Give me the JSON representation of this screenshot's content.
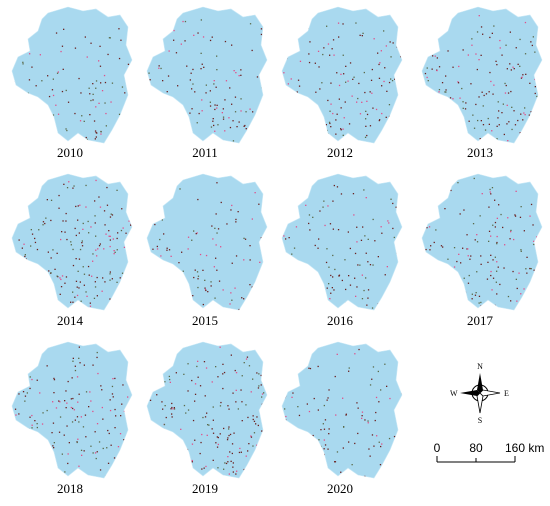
{
  "panels": [
    {
      "year": "2010"
    },
    {
      "year": "2011"
    },
    {
      "year": "2012"
    },
    {
      "year": "2013"
    },
    {
      "year": "2014"
    },
    {
      "year": "2015"
    },
    {
      "year": "2016"
    },
    {
      "year": "2017"
    },
    {
      "year": "2018"
    },
    {
      "year": "2019"
    },
    {
      "year": "2020"
    }
  ],
  "compass": {
    "north": "N",
    "south": "S",
    "east": "E",
    "west": "W"
  },
  "scale_bar": {
    "labels": [
      "0",
      "80",
      "160 km"
    ]
  }
}
